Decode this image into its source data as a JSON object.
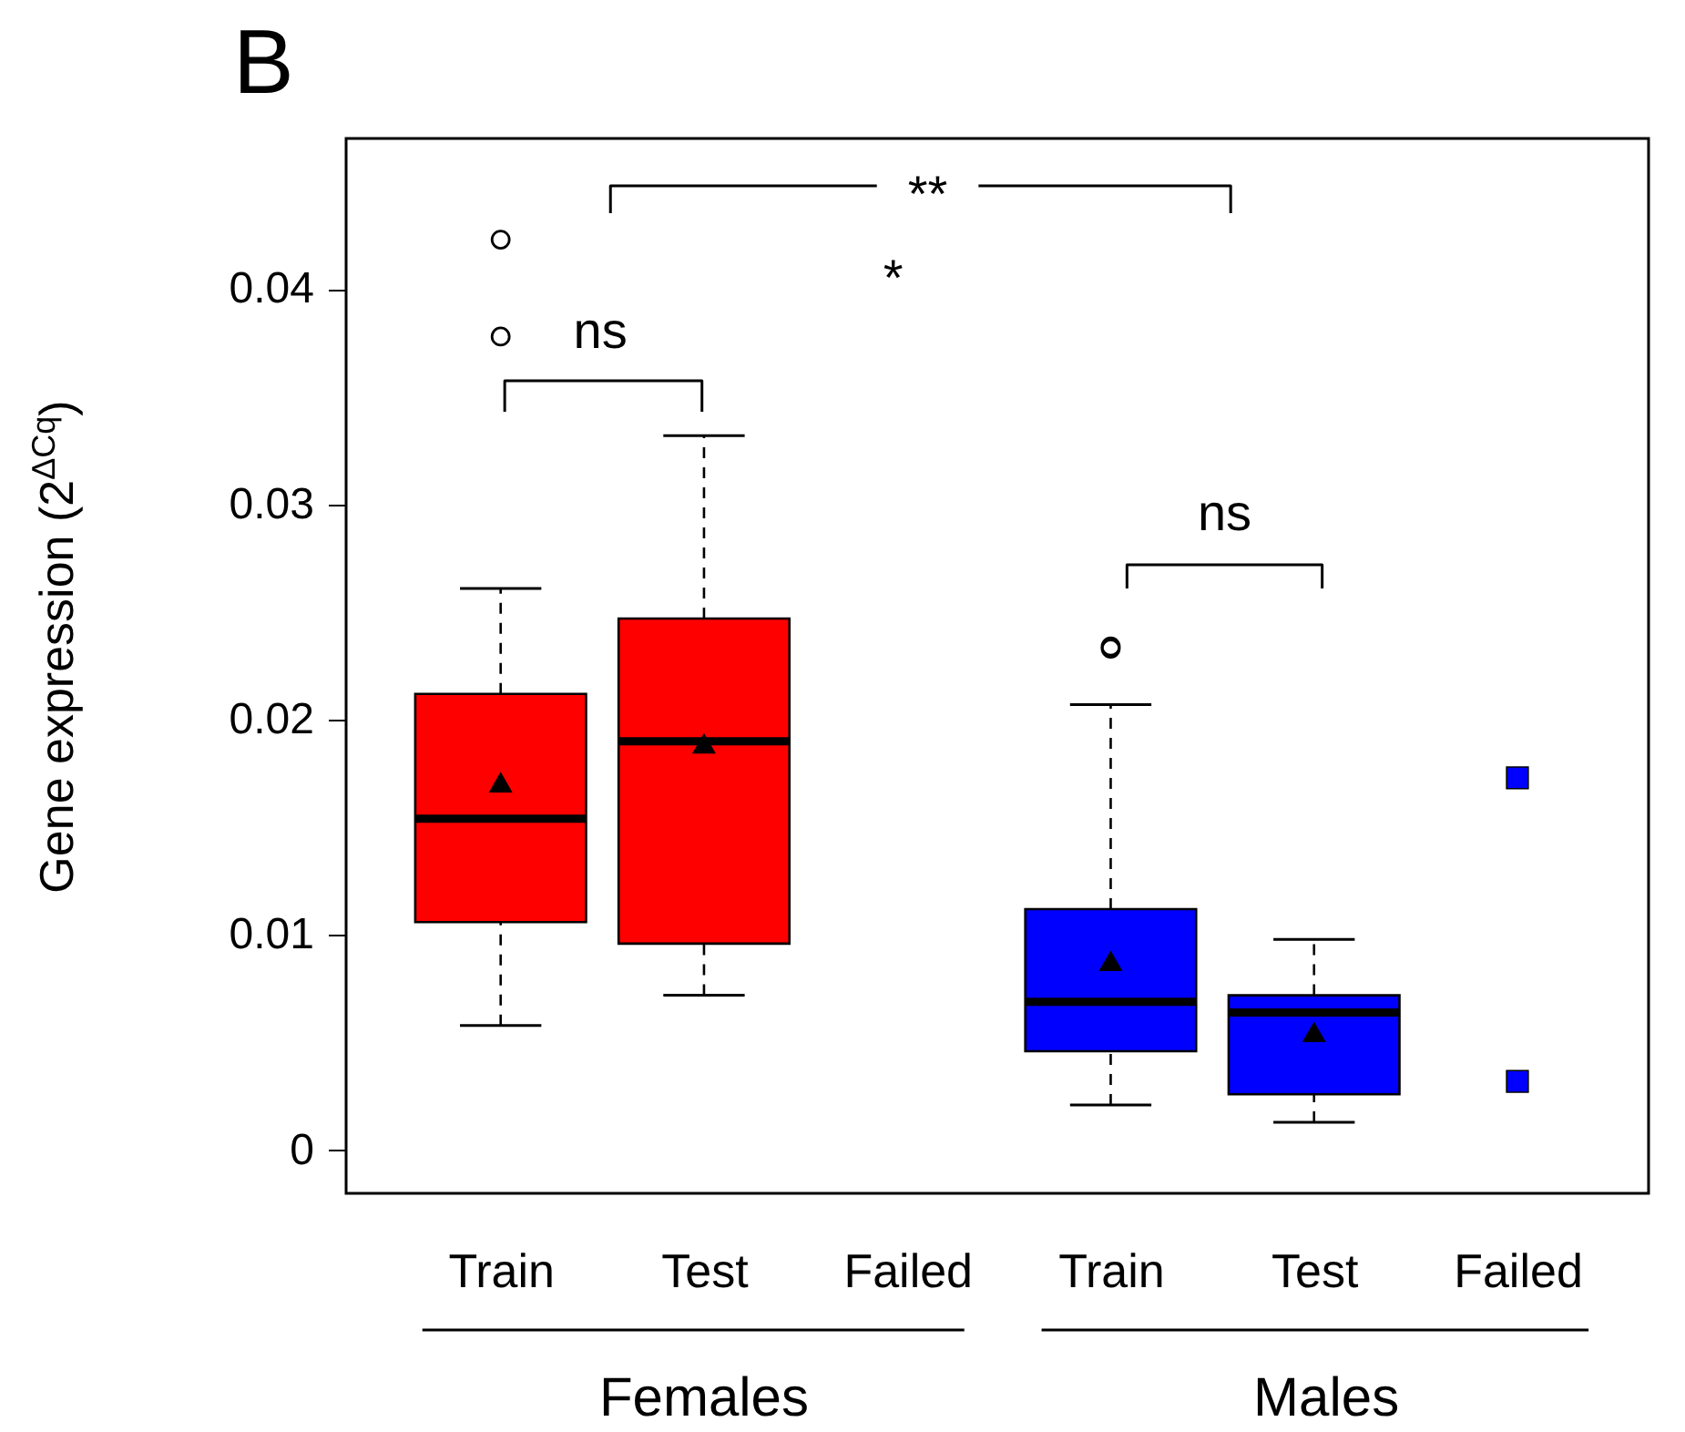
{
  "chart_data": {
    "type": "box",
    "title": "B",
    "ylabel": "Gene expression (2$^{ΔCq}$)",
    "categories": [
      "Train",
      "Test",
      "Failed",
      "Train",
      "Test",
      "Failed"
    ],
    "ylim": [
      -0.002,
      0.047
    ],
    "yticks": [
      0,
      0.01,
      0.02,
      0.03,
      0.04
    ],
    "series": [
      {
        "color": "#ff0000",
        "boxes": [
          {
            "low": 0.0058,
            "q1": 0.0106,
            "median": 0.0154,
            "q3": 0.0212,
            "high": 0.0261,
            "mean": 0.0171,
            "outliers": [
              0.0423,
              0.0378
            ]
          },
          {
            "low": 0.0072,
            "q1": 0.0096,
            "median": 0.019,
            "q3": 0.0247,
            "high": 0.0332,
            "mean": 0.0189
          },
          null,
          null,
          null,
          null
        ]
      },
      {
        "color": "#0000ff",
        "boxes": [
          null,
          null,
          null,
          {
            "low": 0.0021,
            "q1": 0.0046,
            "median": 0.0069,
            "q3": 0.0112,
            "high": 0.0207,
            "mean": 0.0088,
            "outliers": [
              0.0234,
              0.0233
            ]
          },
          {
            "low": 0.0013,
            "q1": 0.0026,
            "median": 0.0064,
            "q3": 0.0072,
            "high": 0.0098,
            "mean": 0.0055
          },
          null
        ]
      },
      {
        "type": "scatter",
        "color": "#0000ff",
        "marker": "square",
        "values": [
          null,
          null,
          null,
          null,
          null,
          0.0173
        ]
      },
      {
        "type": "scatter",
        "color": "#0000ff",
        "marker": "square",
        "values": [
          null,
          null,
          null,
          null,
          null,
          0.0032
        ]
      }
    ],
    "annotations": [
      "ns",
      "ns",
      "**",
      "*",
      "Females",
      "Males"
    ]
  }
}
